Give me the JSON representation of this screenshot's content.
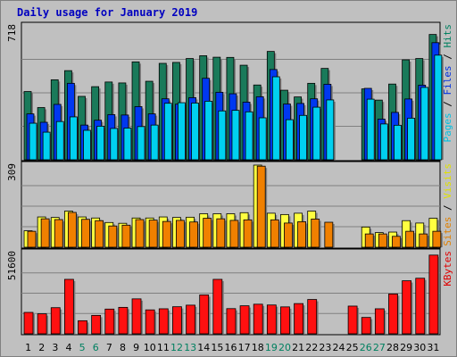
{
  "chart_data": {
    "type": "bar",
    "title": "Daily usage for January 2019",
    "categories": [
      "1",
      "2",
      "3",
      "4",
      "5",
      "6",
      "7",
      "8",
      "9",
      "10",
      "11",
      "12",
      "13",
      "14",
      "15",
      "16",
      "17",
      "18",
      "19",
      "20",
      "21",
      "22",
      "23",
      "24",
      "25",
      "26",
      "27",
      "28",
      "29",
      "30",
      "31"
    ],
    "weekend_categories": [
      "5",
      "6",
      "12",
      "13",
      "19",
      "20",
      "26",
      "27"
    ],
    "panels": [
      {
        "id": "hits-files-pages",
        "ymax": 718,
        "ymax_label": "718",
        "label_parts": [
          {
            "text": "Pages",
            "color": "#00c0e0"
          },
          {
            "text": " / ",
            "color": "#000000"
          },
          {
            "text": "Files",
            "color": "#0030e0"
          },
          {
            "text": " / ",
            "color": "#000000"
          },
          {
            "text": "Hits",
            "color": "#008060"
          }
        ],
        "series": [
          {
            "name": "Hits",
            "color": "#1a7a5a",
            "values": [
              366,
              280,
              429,
              478,
              340,
              392,
              417,
              412,
              525,
              421,
              517,
              522,
              543,
              558,
              550,
              549,
              507,
              401,
              581,
              373,
              337,
              410,
              490,
              null,
              0,
              380,
              320,
              406,
              536,
              543,
              672
            ]
          },
          {
            "name": "Files",
            "color": "#0038f0",
            "values": [
              246,
              201,
              297,
              410,
              186,
              212,
              242,
              240,
              285,
              246,
              327,
              298,
              333,
              437,
              362,
              354,
              309,
              338,
              484,
              299,
              302,
              327,
              405,
              null,
              0,
              383,
              218,
              254,
              326,
              400,
              628
            ]
          },
          {
            "name": "Pages",
            "color": "#00d0f0",
            "values": [
              196,
              148,
              205,
              230,
              158,
              180,
              168,
              170,
              178,
              186,
              303,
              306,
              304,
              314,
              262,
              265,
              257,
              225,
              445,
              215,
              238,
              282,
              321,
              null,
              0,
              325,
              192,
              185,
              223,
              388,
              561
            ]
          }
        ]
      },
      {
        "id": "visits-sites",
        "ymax": 309,
        "ymax_label": "309",
        "label_parts": [
          {
            "text": "Sites",
            "color": "#e08000"
          },
          {
            "text": " / ",
            "color": "#000000"
          },
          {
            "text": "Visits",
            "color": "#e0e000"
          }
        ],
        "series": [
          {
            "name": "Visits",
            "color": "#ffff40",
            "values": [
              62,
              114,
              112,
              136,
              114,
              110,
              93,
              90,
              110,
              110,
              114,
              112,
              113,
              126,
              126,
              126,
              130,
              309,
              128,
              123,
              128,
              136,
              null,
              null,
              0,
              76,
              55,
              57,
              100,
              91,
              109
            ]
          },
          {
            "name": "Sites",
            "color": "#f08000",
            "values": [
              60,
              107,
              104,
              131,
              105,
              100,
              80,
              83,
              104,
              102,
              97,
              101,
              95,
              109,
              107,
              101,
              103,
              305,
              103,
              91,
              96,
              106,
              94,
              null,
              0,
              50,
              50,
              41,
              60,
              50,
              60
            ]
          }
        ]
      },
      {
        "id": "kbytes",
        "ymax": 51600,
        "ymax_label": "51600",
        "label_parts": [
          {
            "text": "KBytes",
            "color": "#e00000"
          }
        ],
        "series": [
          {
            "name": "KBytes",
            "color": "#ff1010",
            "values": [
              13600,
              12700,
              16600,
              34600,
              8300,
              11700,
              15700,
              16800,
              22200,
              15200,
              15900,
              17200,
              18200,
              24700,
              34600,
              16000,
              17800,
              18800,
              18300,
              17100,
              19200,
              21800,
              null,
              null,
              17600,
              10400,
              15900,
              25300,
              33700,
              35300,
              50000
            ]
          }
        ]
      }
    ]
  }
}
